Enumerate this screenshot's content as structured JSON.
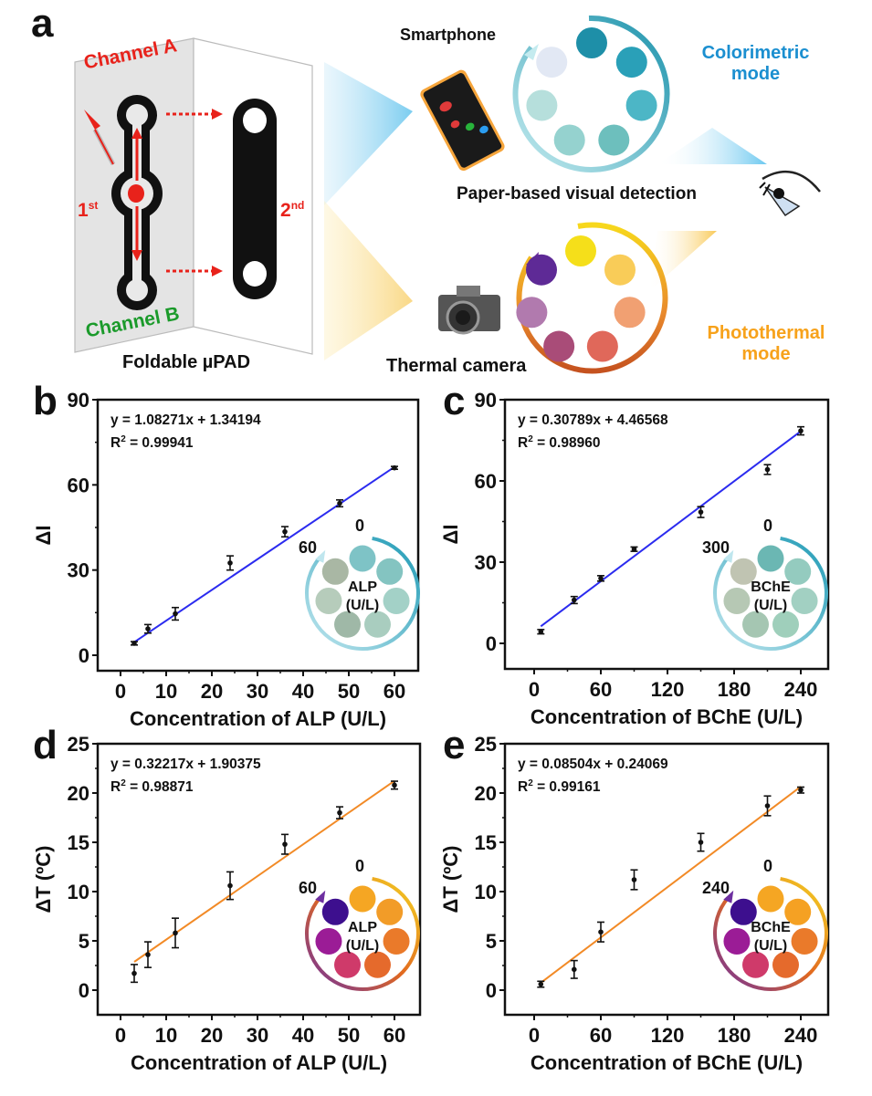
{
  "figure": {
    "panel_labels": [
      "a",
      "b",
      "c",
      "d",
      "e"
    ],
    "schematic": {
      "channel_a": "Channel A",
      "channel_b": "Channel B",
      "first_fold": "1",
      "first_fold_sup": "st",
      "second_fold": "2",
      "second_fold_sup": "nd",
      "device_label": "Foldable µPAD",
      "smartphone_label": "Smartphone",
      "thermal_camera_label": "Thermal camera",
      "visual_detection_label": "Paper-based visual detection",
      "colorimetric_label_line1": "Colorimetric",
      "colorimetric_label_line2": "mode",
      "photothermal_label_line1": "Photothermal",
      "photothermal_label_line2": "mode",
      "colors": {
        "channel_a": "#e8221b",
        "channel_b": "#1a9a2a",
        "fold_labels": "#e8221b",
        "colorimetric": "#1b8fd0",
        "photothermal": "#f7a21b"
      },
      "colorimetric_wheel": [
        "#1e8fa8",
        "#2aa0b8",
        "#4cb6c6",
        "#6dbfbd",
        "#95d2cf",
        "#b6dfdc",
        "#e2e8f4"
      ],
      "photothermal_wheel": [
        "#f5df1a",
        "#f9cc58",
        "#f1a072",
        "#e0685a",
        "#a94c78",
        "#b17aae",
        "#5e2a96"
      ]
    }
  },
  "chart_data": [
    {
      "panel": "b",
      "type": "scatter",
      "title": "",
      "xlabel": "Concentration of ALP (U/L)",
      "ylabel": "ΔI",
      "xlim": [
        -5,
        65
      ],
      "ylim": [
        -8,
        90
      ],
      "xticks": [
        0,
        10,
        20,
        30,
        40,
        50,
        60
      ],
      "yticks": [
        0,
        30,
        60,
        90
      ],
      "grid": false,
      "fit_color": "#2b2bef",
      "fit": {
        "slope": 1.08271,
        "intercept": 1.34194,
        "x_range": [
          3,
          60
        ]
      },
      "equation": "y = 1.08271x + 1.34194",
      "r2_label": "R",
      "r2_value": " = 0.99941",
      "points": [
        {
          "x": 3,
          "y": 4.2,
          "err": 0.6
        },
        {
          "x": 6,
          "y": 9.3,
          "err": 1.5
        },
        {
          "x": 12,
          "y": 14.6,
          "err": 2.2
        },
        {
          "x": 24,
          "y": 32.5,
          "err": 2.5
        },
        {
          "x": 36,
          "y": 43.5,
          "err": 1.8
        },
        {
          "x": 48,
          "y": 53.5,
          "err": 1.2
        },
        {
          "x": 60,
          "y": 66.0,
          "err": 0.5
        }
      ],
      "inset": {
        "start_label": "0",
        "end_label": "60",
        "analyte": "ALP",
        "unit": "(U/L)",
        "arc_colors": [
          "#1f9ab5",
          "#bfe6ee"
        ],
        "spots": [
          "#7ec3c6",
          "#84c4c1",
          "#a3d1c7",
          "#a9cdbf",
          "#9fb8a7",
          "#b6ccbb",
          "#a9b7a4"
        ]
      }
    },
    {
      "panel": "c",
      "type": "scatter",
      "title": "",
      "xlabel": "Concentration of BChE (U/L)",
      "ylabel": "ΔI",
      "xlim": [
        -20,
        270
      ],
      "ylim": [
        -8,
        90
      ],
      "xticks": [
        0,
        60,
        120,
        180,
        240
      ],
      "yticks": [
        0,
        30,
        60,
        90
      ],
      "grid": false,
      "fit_color": "#2b2bef",
      "fit": {
        "slope": 0.30789,
        "intercept": 4.46568,
        "x_range": [
          6,
          240
        ]
      },
      "equation": "y = 0.30789x + 4.46568",
      "r2_label": "R",
      "r2_value": " = 0.98960",
      "points": [
        {
          "x": 6,
          "y": 4.3,
          "err": 0.8
        },
        {
          "x": 36,
          "y": 16.0,
          "err": 1.3
        },
        {
          "x": 60,
          "y": 24.0,
          "err": 1.0
        },
        {
          "x": 90,
          "y": 34.8,
          "err": 0.8
        },
        {
          "x": 150,
          "y": 48.5,
          "err": 2.0
        },
        {
          "x": 210,
          "y": 64.2,
          "err": 1.8
        },
        {
          "x": 240,
          "y": 78.5,
          "err": 1.5
        }
      ],
      "inset": {
        "start_label": "0",
        "end_label": "300",
        "analyte": "BChE",
        "unit": "(U/L)",
        "arc_colors": [
          "#1f9ab5",
          "#bfe6ee"
        ],
        "spots": [
          "#6bb7b3",
          "#94cbbf",
          "#a2d0c2",
          "#9fcfbb",
          "#a5c6b2",
          "#b6c8b4",
          "#c0c4b2"
        ]
      }
    },
    {
      "panel": "d",
      "type": "scatter",
      "title": "",
      "xlabel": "Concentration of ALP (U/L)",
      "ylabel": "ΔT (ºC)",
      "xlim": [
        -5,
        65
      ],
      "ylim": [
        -2.5,
        25
      ],
      "xticks": [
        0,
        10,
        20,
        30,
        40,
        50,
        60
      ],
      "yticks": [
        0,
        5,
        10,
        15,
        20,
        25
      ],
      "grid": false,
      "fit_color": "#f28a26",
      "fit": {
        "slope": 0.32217,
        "intercept": 1.90375,
        "x_range": [
          3,
          60
        ]
      },
      "equation": "y = 0.32217x + 1.90375",
      "r2_label": "R",
      "r2_value": " = 0.98871",
      "points": [
        {
          "x": 3,
          "y": 1.7,
          "err": 0.9
        },
        {
          "x": 6,
          "y": 3.6,
          "err": 1.3
        },
        {
          "x": 12,
          "y": 5.8,
          "err": 1.5
        },
        {
          "x": 24,
          "y": 10.6,
          "err": 1.4
        },
        {
          "x": 36,
          "y": 14.8,
          "err": 1.0
        },
        {
          "x": 48,
          "y": 18.0,
          "err": 0.6
        },
        {
          "x": 60,
          "y": 20.8,
          "err": 0.4
        }
      ],
      "inset": {
        "start_label": "0",
        "end_label": "60",
        "analyte": "ALP",
        "unit": "(U/L)",
        "arc_colors": [
          "#f5d823",
          "#e2691f",
          "#6d2fa0"
        ],
        "spots": [
          "#f5a623",
          "#f29c28",
          "#ea7a2a",
          "#e56a2c",
          "#cf3a6a",
          "#9b1c96",
          "#3d0f8e"
        ]
      }
    },
    {
      "panel": "e",
      "type": "scatter",
      "title": "",
      "xlabel": "Concentration of BChE (U/L)",
      "ylabel": "ΔT (ºC)",
      "xlim": [
        -20,
        270
      ],
      "ylim": [
        -2.5,
        25
      ],
      "xticks": [
        0,
        60,
        120,
        180,
        240
      ],
      "yticks": [
        0,
        5,
        10,
        15,
        20,
        25
      ],
      "grid": false,
      "fit_color": "#f28a26",
      "fit": {
        "slope": 0.08504,
        "intercept": 0.24069,
        "x_range": [
          6,
          240
        ]
      },
      "equation": "y = 0.08504x + 0.24069",
      "r2_label": "R",
      "r2_value": " = 0.99161",
      "points": [
        {
          "x": 6,
          "y": 0.6,
          "err": 0.3
        },
        {
          "x": 36,
          "y": 2.1,
          "err": 0.9
        },
        {
          "x": 60,
          "y": 5.9,
          "err": 1.0
        },
        {
          "x": 90,
          "y": 11.2,
          "err": 1.0
        },
        {
          "x": 150,
          "y": 15.0,
          "err": 0.9
        },
        {
          "x": 210,
          "y": 18.7,
          "err": 1.0
        },
        {
          "x": 240,
          "y": 20.3,
          "err": 0.3
        }
      ],
      "inset": {
        "start_label": "0",
        "end_label": "240",
        "analyte": "BChE",
        "unit": "(U/L)",
        "arc_colors": [
          "#f5d823",
          "#e2691f",
          "#6d2fa0"
        ],
        "spots": [
          "#f5a623",
          "#f5a123",
          "#ea7a2a",
          "#e56a2c",
          "#cf3a6a",
          "#9b1c96",
          "#3d0f8e"
        ]
      }
    }
  ]
}
